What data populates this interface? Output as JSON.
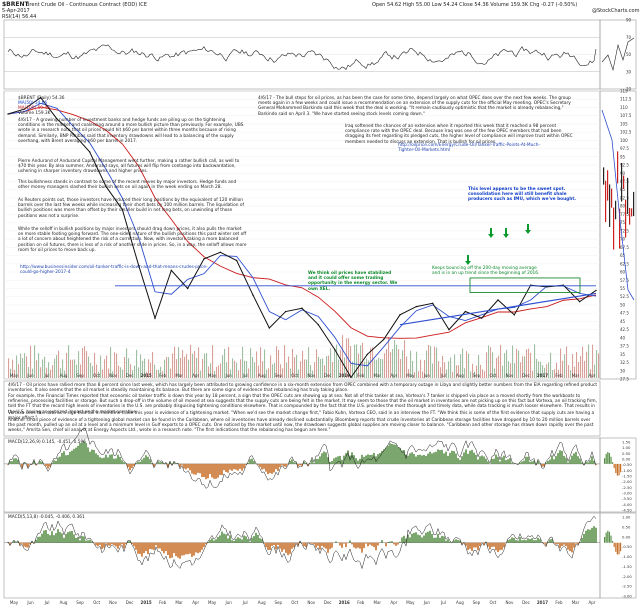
{
  "header": {
    "symbol": "$BRENT",
    "name": "Brent Crude Oil - Continuous Contract (EOD) ICE",
    "date": "5-Apr-2017",
    "quote": "Open 54.62   High 55.00   Low 54.24   Close 54.36   Volume 159.3K   Chg -0.27 (-0.50%)",
    "brand": "@StockCharts.com",
    "rsi_label": "RSI(14) 56.44"
  },
  "chart_data": [
    {
      "type": "line",
      "title": "RSI(14)",
      "ylim": [
        10,
        90
      ],
      "y_ticks": [
        90,
        70,
        50,
        30,
        10
      ],
      "reference_lines": [
        70,
        30
      ],
      "last": 56.44
    },
    {
      "type": "bar",
      "title": "$BRENT Brent Crude Oil",
      "legend": [
        "$BRENT (Daily) 54.36",
        "MA(50) 54.66",
        "MA(200) 50.46",
        "Volume 159.3K"
      ],
      "x_ticks": [
        "May",
        "Jun",
        "Jul",
        "Aug",
        "Sep",
        "Oct",
        "Nov",
        "Dec",
        "2015",
        "Feb",
        "Mar",
        "Apr",
        "May",
        "Jun",
        "Jul",
        "Aug",
        "Sep",
        "Oct",
        "Nov",
        "Dec",
        "2016",
        "Feb",
        "Mar",
        "Apr",
        "May",
        "Jun",
        "Jul",
        "Aug",
        "Sep",
        "Oct",
        "Nov",
        "Dec",
        "2017",
        "Feb",
        "Mar",
        "Apr"
      ],
      "y_ticks": [
        115,
        112.5,
        110,
        107.5,
        105,
        102.5,
        100,
        97.5,
        95,
        92.5,
        90,
        87.5,
        85,
        82.5,
        80,
        77.5,
        75,
        72.5,
        70,
        67.5,
        65,
        62.5,
        60,
        57.5,
        55,
        52.5,
        50,
        47.5,
        45,
        42.5,
        40,
        37.5,
        35,
        32.5,
        30,
        27.5
      ],
      "ylim": [
        27.5,
        115
      ],
      "price": [
        {
          "x": "2014-04",
          "y": 108
        },
        {
          "x": "2014-05",
          "y": 109.5
        },
        {
          "x": "2014-06",
          "y": 113
        },
        {
          "x": "2014-07",
          "y": 106.5
        },
        {
          "x": "2014-08",
          "y": 102
        },
        {
          "x": "2014-09",
          "y": 96.5
        },
        {
          "x": "2014-10",
          "y": 86
        },
        {
          "x": "2014-11",
          "y": 79
        },
        {
          "x": "2014-12",
          "y": 62
        },
        {
          "x": "2015-01",
          "y": 46
        },
        {
          "x": "2015-02",
          "y": 60.5
        },
        {
          "x": "2015-03",
          "y": 55
        },
        {
          "x": "2015-04",
          "y": 64
        },
        {
          "x": "2015-05",
          "y": 66
        },
        {
          "x": "2015-06",
          "y": 63.5
        },
        {
          "x": "2015-07",
          "y": 53
        },
        {
          "x": "2015-08",
          "y": 43
        },
        {
          "x": "2015-09",
          "y": 48
        },
        {
          "x": "2015-10",
          "y": 49
        },
        {
          "x": "2015-11",
          "y": 44
        },
        {
          "x": "2015-12",
          "y": 36.5
        },
        {
          "x": "2016-01",
          "y": 28
        },
        {
          "x": "2016-02",
          "y": 35
        },
        {
          "x": "2016-03",
          "y": 39.5
        },
        {
          "x": "2016-04",
          "y": 47
        },
        {
          "x": "2016-05",
          "y": 49.5
        },
        {
          "x": "2016-06",
          "y": 50.5
        },
        {
          "x": "2016-07",
          "y": 42.5
        },
        {
          "x": "2016-08",
          "y": 48
        },
        {
          "x": "2016-09",
          "y": 46
        },
        {
          "x": "2016-10",
          "y": 51.5
        },
        {
          "x": "2016-11",
          "y": 47
        },
        {
          "x": "2016-12",
          "y": 56
        },
        {
          "x": "2017-01",
          "y": 55.5
        },
        {
          "x": "2017-02",
          "y": 56
        },
        {
          "x": "2017-03",
          "y": 51
        },
        {
          "x": "2017-04",
          "y": 54.4
        }
      ]
    },
    {
      "type": "line",
      "title": "MACD",
      "legend": [
        "MACD(12,26,9) 0.145, -0.451, 0.596"
      ]
    },
    {
      "type": "line",
      "title": "MACD",
      "legend": [
        "MACD(5,13,8) -0.045, -0.406, 0.361"
      ]
    }
  ],
  "annotations": {
    "note_left_1": "4/6/17 - A growing number of investment banks and hedge funds are piling up on the tightening conditions in the market and coalescing around a more bullish picture than previously. For example, UBS wrote in a research note that oil prices could hit $60 per barrel within three months because of rising demand. Similarly, BNP Paribas said that inventory drawdowns will lead to a balancing of the supply overhang, with Brent averaging $60 per barrel in 2017.",
    "note_left_2": "Pierre Andurand of Andurand Capital Management went further, making a rather bullish call, as well to $70 this year. By also summer, Andurand says, all futures will flip from contango into backwardation, ushering in sharper inventory drawdowns and higher prices.",
    "note_left_3": "This bullishness stands in contrast to some of the recent moves by major investors. Hedge funds and other money managers slashed their bullish bets on oil again in the week ending on March 28.",
    "note_left_4": "As Reuters points out, those investors have reduced their long positions by the equivalent of 120 million barrels over the last few weeks while increasing their short bets by 100 million barrels. The liquidation of bullish positions was more than offset by their smaller build in net long bets, on unwinding of those positions was not a surprise.",
    "note_left_5": "While the selloff in bullish positions by major investors should drag down prices, it also pulls the market on more stable footing going forward. The one-sided nature of the bullish positions this past winter set off a lot of concern about heightened the risk of a correction. Now, with investors taking a more balanced position on oil futures, there is less of a risk of another slide in prices. So, in a way, the selloff allows more room for oil prices to move back up.",
    "link_left": "http://www.businessinsider.com/oil-tanker-traffic-is-down-and-that-means-crudes-price-could-go-higher-2017-4",
    "note_top_1": "4/6/17 - The bull steps for oil prices, as has been the case for some time, depend largely on what OPEC does over the next few weeks. The group meets again in a few weeks and could issue a recommendation on an extension of the supply cuts for the official May meeting. OPEC's Secretary General Mohammed Barkindo said this week that the deal is working. \"It remain cautiously optimistic that the market is already rebalancing,\" Barkindo said on April 3. \"We have started seeing stock levels coming down.\"",
    "note_top_2": "Iraq softened the chances of an extension when it reported this week that it reached a 98 percent compliance rate with the OPEC deal. Because Iraq was one of the few OPEC members that had been dragging its feet regarding its pledged cuts, the higher level of compliance will improve trust within OPEC members needed to discuss an extension. That is bullish for oil prices.",
    "link_top": "http://oilprice.com/Energy/Crude-Oil/Tanker-Traffic-Points-At-Much-Tighter-Oil-Markets.html",
    "callout_blue": "This level appears to be the sweet spot. consolidation here will still benefit shale producers such as IMU, which we've bought.",
    "callout_green": "We think oil prices have stabilized and it could offer some trading opportunity in the energy sector. We own XEL.",
    "callout_bounce": "Keeps bouncing off the 200-day moving average and is in an up trend since the beginning of 2016.",
    "note_mid_1": "4/6/17 - Oil prices have rallied more than 8 percent since last week, which has largely been attributed to growing confidence in a six-month extension from OPEC combined with a temporary outage in Libya and slightly better numbers from the EIA regarding refined product inventories. It also seems that the oil market is steadily maintaining its balance. But there are some signs of evidence that rebalancing has truly taking place.",
    "note_mid_2": "For example, the Financial Times reported that economic oil tanker traffic is down this year by 18 percent, a sign that the OPEC cuts are showing up at sea. Not all of this tanker at sea, Vortexa's 7 tanker is shipped via place as a moved shortly from the workboats to refineries, processing facilities or storage. But such a drop-off in the volume of oil moved at sea suggests that the supply cuts are being felt in the market. It may seem to those that the oil market in inventories are not picking up on this fact but Vortexa, an oil tracking firm, told the FT that the record high levels of inventories in the U.S. are probably disguising tightening conditions elsewhere. That is compounded by the fact that the U.S. provides the most thorough and timely data, while data tracking is much looser elsewhere. That results in the U.S. having an outsized impact on the market narrative.",
    "note_mid_3": "Vortexa sees this data as a sign that fall in maritime trade this year is evidence of a tightening market. \"When we'd see the market change first,\" Fabio Kuhn, Vortexa CEO, said in an interview the FT. \"We think this is some of the first evidence that supply cuts are having a major effect.\"",
    "note_mid_4": "Another small piece of evidence of a tightening global market can be found in the Caribbean, where oil inventories have already declined substantially. Bloomberg reports that crude inventories at Caribbean storage facilities have dropped by 10 to 20 million barrels over the past month, pulled up an oil at a level and a minimum level in Gulf exports to a OPEC cuts. One noticed by the market until now, the drawdown suggests global supplies are moving closer to balance. \"Caribbean and other storage has drawn down rapidly over the past weeks,\" Amrita Sen, chief oil analyst at Energy Aspects Ltd., wrote in a research note. \"The first indications that the rebalancing has begun are here.\"",
    "link_mid": "http://www.businessinsider.com/oil-tanker-traffic-is-down-and-that-means-crudes-price-could-go-higher-2017-4"
  },
  "panels": {
    "macd1_title": "MACD(12,26,9) 0.145, -0.451, 0.596",
    "macd2_title": "MACD(5,13,8) -0.045, -0.406, 0.361",
    "volume_title": "Volume 159.3K",
    "macd1_ticks": [
      "1.50",
      "1.00",
      "0.50",
      "0.00",
      "-0.50",
      "-1.00",
      "-1.50",
      "-2.00",
      "-2.50",
      "-3.00",
      "-3.50",
      "-4.00",
      "-4.50"
    ],
    "macd2_ticks": [
      "1.00",
      "0.50",
      "0.00",
      "-0.50",
      "-1.00",
      "-1.50",
      "-2.00",
      "-2.50",
      "-3.00"
    ]
  }
}
